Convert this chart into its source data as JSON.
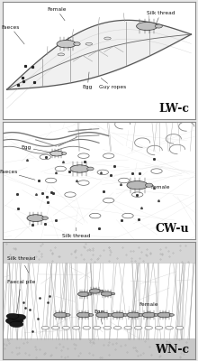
{
  "figsize": [
    2.2,
    4.0
  ],
  "dpi": 100,
  "bg_color": "#e8e8e8",
  "panel_bg": "white",
  "border_color": "#666666",
  "panel_labels": [
    "LW-c",
    "CW-u",
    "WN-c"
  ],
  "label_fontsize": 9,
  "annot_fontsize": 4.2,
  "line_color": "#444444"
}
